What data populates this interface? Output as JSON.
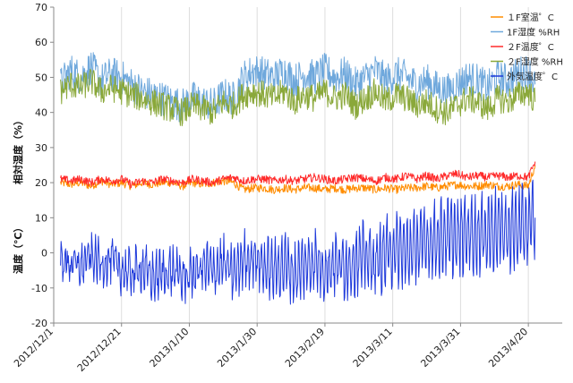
{
  "chart_data": {
    "type": "line",
    "y_axis_title_top": "相対湿度（%）",
    "y_axis_title_bottom": "温度（℃）",
    "ylim": [
      -20,
      70
    ],
    "y_ticks": [
      -20,
      -10,
      0,
      10,
      20,
      30,
      40,
      50,
      60,
      70
    ],
    "x_start": "2012-12-01",
    "x_end": "2013-04-30",
    "x_ticks": [
      "2012/12/1",
      "2012/12/21",
      "2013/1/10",
      "2013/1/30",
      "2013/2/19",
      "2013/3/11",
      "2013/3/31",
      "2013/4/20"
    ],
    "grid": "vertical",
    "legend_position": "top-right",
    "series": [
      {
        "name": "１F室温゜C",
        "color": "#ff8c00",
        "x": [
          "2012-12-03",
          "2012-12-06",
          "2012-12-09",
          "2012-12-12",
          "2012-12-15",
          "2012-12-18",
          "2012-12-21",
          "2012-12-24",
          "2012-12-27",
          "2012-12-30",
          "2013-01-02",
          "2013-01-05",
          "2013-01-08",
          "2013-01-11",
          "2013-01-14",
          "2013-01-17",
          "2013-01-20",
          "2013-01-23",
          "2013-01-26",
          "2013-01-29",
          "2013-02-01",
          "2013-02-04",
          "2013-02-07",
          "2013-02-10",
          "2013-02-13",
          "2013-02-16",
          "2013-02-19",
          "2013-02-22",
          "2013-02-25",
          "2013-02-28",
          "2013-03-03",
          "2013-03-06",
          "2013-03-09",
          "2013-03-12",
          "2013-03-15",
          "2013-03-18",
          "2013-03-21",
          "2013-03-24",
          "2013-03-27",
          "2013-03-30",
          "2013-04-02",
          "2013-04-05",
          "2013-04-08",
          "2013-04-11",
          "2013-04-14",
          "2013-04-17",
          "2013-04-20",
          "2013-04-22"
        ],
        "values": [
          20,
          19.5,
          20,
          19,
          20.5,
          19.5,
          20,
          19,
          20,
          19.5,
          20,
          20,
          19,
          20,
          19.5,
          20,
          20.5,
          20,
          18,
          18.5,
          18.5,
          18,
          18.5,
          18,
          18.5,
          18.5,
          18,
          18.5,
          18,
          18.5,
          18.5,
          18,
          18.5,
          18,
          18.5,
          18.5,
          19,
          18.5,
          19,
          19.5,
          19,
          19,
          19.5,
          19,
          19,
          19.5,
          19,
          25
        ]
      },
      {
        "name": "1F湿度 %RH",
        "color": "#6fa8dc",
        "x": [
          "2012-12-03",
          "2012-12-06",
          "2012-12-09",
          "2012-12-12",
          "2012-12-15",
          "2012-12-18",
          "2012-12-21",
          "2012-12-24",
          "2012-12-27",
          "2012-12-30",
          "2013-01-02",
          "2013-01-05",
          "2013-01-08",
          "2013-01-11",
          "2013-01-14",
          "2013-01-17",
          "2013-01-20",
          "2013-01-23",
          "2013-01-26",
          "2013-01-29",
          "2013-02-01",
          "2013-02-04",
          "2013-02-07",
          "2013-02-10",
          "2013-02-13",
          "2013-02-16",
          "2013-02-19",
          "2013-02-22",
          "2013-02-25",
          "2013-02-28",
          "2013-03-03",
          "2013-03-06",
          "2013-03-09",
          "2013-03-12",
          "2013-03-15",
          "2013-03-18",
          "2013-03-21",
          "2013-03-24",
          "2013-03-27",
          "2013-03-30",
          "2013-04-02",
          "2013-04-05",
          "2013-04-08",
          "2013-04-11",
          "2013-04-14",
          "2013-04-17",
          "2013-04-20",
          "2013-04-22"
        ],
        "values": [
          48,
          52,
          50,
          53,
          49,
          51,
          50,
          48,
          46,
          45,
          44,
          43,
          42,
          44,
          43,
          42,
          45,
          44,
          50,
          52,
          51,
          50,
          52,
          49,
          51,
          50,
          52,
          50,
          51,
          48,
          50,
          52,
          49,
          51,
          50,
          48,
          49,
          47,
          46,
          48,
          50,
          49,
          47,
          50,
          49,
          51,
          52,
          48
        ]
      },
      {
        "name": "２F温度゜C",
        "color": "#ff2a2a",
        "x": [
          "2012-12-03",
          "2012-12-06",
          "2012-12-09",
          "2012-12-12",
          "2012-12-15",
          "2012-12-18",
          "2012-12-21",
          "2012-12-24",
          "2012-12-27",
          "2012-12-30",
          "2013-01-02",
          "2013-01-05",
          "2013-01-08",
          "2013-01-11",
          "2013-01-14",
          "2013-01-17",
          "2013-01-20",
          "2013-01-23",
          "2013-01-26",
          "2013-01-29",
          "2013-02-01",
          "2013-02-04",
          "2013-02-07",
          "2013-02-10",
          "2013-02-13",
          "2013-02-16",
          "2013-02-19",
          "2013-02-22",
          "2013-02-25",
          "2013-02-28",
          "2013-03-03",
          "2013-03-06",
          "2013-03-09",
          "2013-03-12",
          "2013-03-15",
          "2013-03-18",
          "2013-03-21",
          "2013-03-24",
          "2013-03-27",
          "2013-03-30",
          "2013-04-02",
          "2013-04-05",
          "2013-04-08",
          "2013-04-11",
          "2013-04-14",
          "2013-04-17",
          "2013-04-20",
          "2013-04-22"
        ],
        "values": [
          21,
          20.5,
          21,
          20,
          21,
          20.5,
          21,
          19.5,
          20.5,
          20,
          21,
          20.5,
          20,
          21,
          20.5,
          20,
          21,
          21.5,
          20.5,
          21,
          21,
          20.5,
          21,
          20.5,
          21,
          21.5,
          21,
          20.5,
          21,
          21.5,
          21,
          20.5,
          21.5,
          21,
          22,
          21,
          22,
          21,
          22,
          22.5,
          21.5,
          22,
          21.5,
          22,
          21.5,
          22,
          21.5,
          26
        ]
      },
      {
        "name": "２F湿度 %RH",
        "color": "#8aa83a",
        "x": [
          "2012-12-03",
          "2012-12-06",
          "2012-12-09",
          "2012-12-12",
          "2012-12-15",
          "2012-12-18",
          "2012-12-21",
          "2012-12-24",
          "2012-12-27",
          "2012-12-30",
          "2013-01-02",
          "2013-01-05",
          "2013-01-08",
          "2013-01-11",
          "2013-01-14",
          "2013-01-17",
          "2013-01-20",
          "2013-01-23",
          "2013-01-26",
          "2013-01-29",
          "2013-02-01",
          "2013-02-04",
          "2013-02-07",
          "2013-02-10",
          "2013-02-13",
          "2013-02-16",
          "2013-02-19",
          "2013-02-22",
          "2013-02-25",
          "2013-02-28",
          "2013-03-03",
          "2013-03-06",
          "2013-03-09",
          "2013-03-12",
          "2013-03-15",
          "2013-03-18",
          "2013-03-21",
          "2013-03-24",
          "2013-03-27",
          "2013-03-30",
          "2013-04-02",
          "2013-04-05",
          "2013-04-08",
          "2013-04-11",
          "2013-04-14",
          "2013-04-17",
          "2013-04-20",
          "2013-04-22"
        ],
        "values": [
          46,
          48,
          47,
          49,
          46,
          47,
          46,
          45,
          44,
          43,
          42,
          41,
          40,
          42,
          41,
          40,
          43,
          42,
          45,
          46,
          45,
          44,
          46,
          43,
          45,
          44,
          46,
          44,
          45,
          42,
          44,
          46,
          43,
          45,
          44,
          42,
          43,
          41,
          40,
          42,
          44,
          43,
          41,
          44,
          43,
          45,
          46,
          43
        ]
      },
      {
        "name": "外気温度゜C",
        "color": "#1f3adb",
        "x": [
          "2012-12-03",
          "2012-12-06",
          "2012-12-09",
          "2012-12-12",
          "2012-12-15",
          "2012-12-18",
          "2012-12-21",
          "2012-12-24",
          "2012-12-27",
          "2012-12-30",
          "2013-01-02",
          "2013-01-05",
          "2013-01-08",
          "2013-01-11",
          "2013-01-14",
          "2013-01-17",
          "2013-01-20",
          "2013-01-23",
          "2013-01-26",
          "2013-01-29",
          "2013-02-01",
          "2013-02-04",
          "2013-02-07",
          "2013-02-10",
          "2013-02-13",
          "2013-02-16",
          "2013-02-19",
          "2013-02-22",
          "2013-02-25",
          "2013-02-28",
          "2013-03-03",
          "2013-03-06",
          "2013-03-09",
          "2013-03-12",
          "2013-03-15",
          "2013-03-18",
          "2013-03-21",
          "2013-03-24",
          "2013-03-27",
          "2013-03-30",
          "2013-04-02",
          "2013-04-05",
          "2013-04-08",
          "2013-04-11",
          "2013-04-14",
          "2013-04-17",
          "2013-04-20",
          "2013-04-22"
        ],
        "values": [
          -2,
          -3,
          -4,
          -1,
          -3,
          -2,
          -5,
          -6,
          -4,
          -7,
          -6,
          -5,
          -7,
          -6,
          -4,
          -5,
          -3,
          -6,
          -2,
          -1,
          -4,
          -5,
          -3,
          -6,
          -4,
          -2,
          -5,
          -3,
          -4,
          -2,
          -1,
          -3,
          0,
          1,
          0,
          2,
          3,
          4,
          5,
          4,
          6,
          5,
          6,
          7,
          6,
          7,
          8,
          10
        ]
      }
    ]
  }
}
